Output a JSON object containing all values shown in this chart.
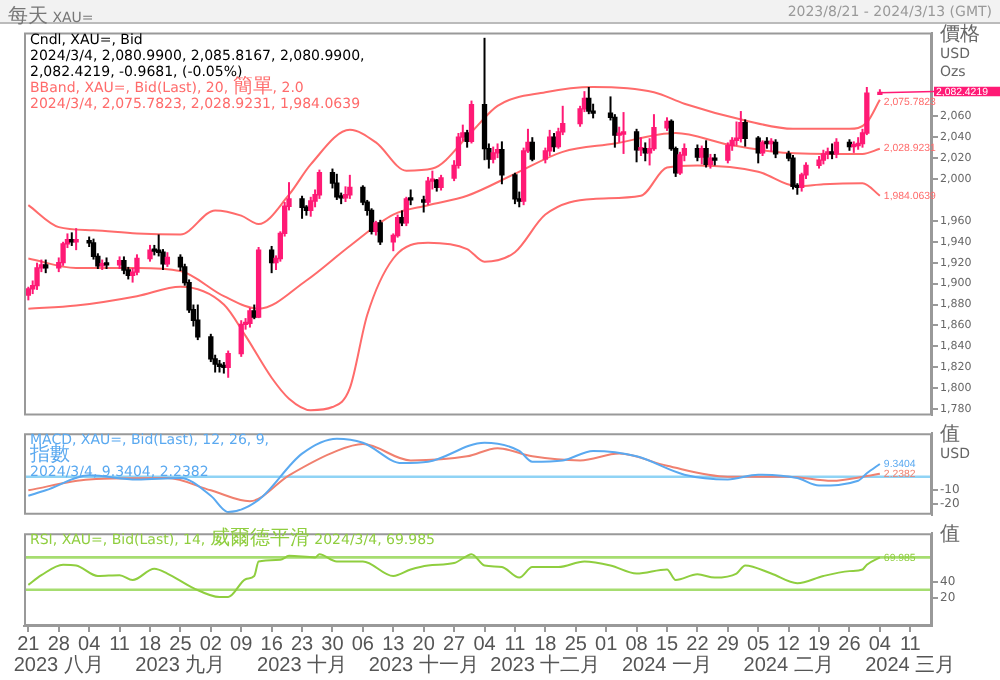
{
  "chart_data": [
    {
      "type": "other",
      "title": "每天 XAU=",
      "subtitle": "2023/8/21 - 2024/3/13 (GMT)"
    },
    {
      "type": "candlestick",
      "title": "Cndl, XAU=, Bid",
      "subtitle": "2024/3/4, 2,080.9900, 2,085.8167, 2,080.9900, 2,082.4219, -0.9681, (-0.05%)",
      "ylabel": "價格\nUSD\nOzs",
      "tick_labels": "y",
      "xlim": [
        "2023-08-20",
        "2024-03-16"
      ],
      "ylim": [
        1774,
        2140
      ],
      "yticks": [
        {
          "value": 1780,
          "label": "1,780"
        },
        {
          "value": 1800,
          "label": "1,800"
        },
        {
          "value": 1820,
          "label": "1,820"
        },
        {
          "value": 1840,
          "label": "1,840"
        },
        {
          "value": 1860,
          "label": "1,860"
        },
        {
          "value": 1880,
          "label": "1,880"
        },
        {
          "value": 1900,
          "label": "1,900"
        },
        {
          "value": 1920,
          "label": "1,920"
        },
        {
          "value": 1940,
          "label": "1,940"
        },
        {
          "value": 1960,
          "label": "1,960"
        },
        {
          "value": 2000,
          "label": "2,000"
        },
        {
          "value": 2020,
          "label": "2,020"
        },
        {
          "value": 2040,
          "label": "2,040"
        },
        {
          "value": 2060,
          "label": "2,060"
        }
      ],
      "x": [
        "2023-08-21",
        "2023-08-22",
        "2023-08-23",
        "2023-08-24",
        "2023-08-25",
        "2023-08-28",
        "2023-08-29",
        "2023-08-30",
        "2023-08-31",
        "2023-09-01",
        "2023-09-04",
        "2023-09-05",
        "2023-09-06",
        "2023-09-07",
        "2023-09-08",
        "2023-09-11",
        "2023-09-12",
        "2023-09-13",
        "2023-09-14",
        "2023-09-15",
        "2023-09-18",
        "2023-09-19",
        "2023-09-20",
        "2023-09-21",
        "2023-09-22",
        "2023-09-25",
        "2023-09-26",
        "2023-09-27",
        "2023-09-28",
        "2023-09-29",
        "2023-10-02",
        "2023-10-03",
        "2023-10-04",
        "2023-10-05",
        "2023-10-06",
        "2023-10-09",
        "2023-10-10",
        "2023-10-11",
        "2023-10-12",
        "2023-10-13",
        "2023-10-16",
        "2023-10-17",
        "2023-10-18",
        "2023-10-19",
        "2023-10-20",
        "2023-10-23",
        "2023-10-24",
        "2023-10-25",
        "2023-10-26",
        "2023-10-27",
        "2023-10-30",
        "2023-10-31",
        "2023-11-01",
        "2023-11-02",
        "2023-11-03",
        "2023-11-06",
        "2023-11-07",
        "2023-11-08",
        "2023-11-09",
        "2023-11-10",
        "2023-11-13",
        "2023-11-14",
        "2023-11-15",
        "2023-11-16",
        "2023-11-17",
        "2023-11-20",
        "2023-11-21",
        "2023-11-22",
        "2023-11-23",
        "2023-11-24",
        "2023-11-27",
        "2023-11-28",
        "2023-11-29",
        "2023-11-30",
        "2023-12-01",
        "2023-12-04",
        "2023-12-05",
        "2023-12-06",
        "2023-12-07",
        "2023-12-08",
        "2023-12-11",
        "2023-12-12",
        "2023-12-13",
        "2023-12-14",
        "2023-12-15",
        "2023-12-18",
        "2023-12-19",
        "2023-12-20",
        "2023-12-21",
        "2023-12-22",
        "2023-12-26",
        "2023-12-27",
        "2023-12-28",
        "2023-12-29",
        "2024-01-02",
        "2024-01-03",
        "2024-01-04",
        "2024-01-05",
        "2024-01-08",
        "2024-01-09",
        "2024-01-10",
        "2024-01-11",
        "2024-01-12",
        "2024-01-15",
        "2024-01-16",
        "2024-01-17",
        "2024-01-18",
        "2024-01-19",
        "2024-01-22",
        "2024-01-23",
        "2024-01-24",
        "2024-01-25",
        "2024-01-26",
        "2024-01-29",
        "2024-01-30",
        "2024-01-31",
        "2024-02-01",
        "2024-02-02",
        "2024-02-05",
        "2024-02-06",
        "2024-02-07",
        "2024-02-08",
        "2024-02-09",
        "2024-02-12",
        "2024-02-13",
        "2024-02-14",
        "2024-02-15",
        "2024-02-16",
        "2024-02-19",
        "2024-02-20",
        "2024-02-21",
        "2024-02-22",
        "2024-02-23",
        "2024-02-26",
        "2024-02-27",
        "2024-02-28",
        "2024-02-29",
        "2024-03-01",
        "2024-03-04"
      ],
      "ohlc": [
        [
          1889,
          1897,
          1884,
          1895
        ],
        [
          1895,
          1903,
          1890,
          1898
        ],
        [
          1898,
          1920,
          1894,
          1915
        ],
        [
          1915,
          1923,
          1911,
          1918
        ],
        [
          1918,
          1923,
          1910,
          1915
        ],
        [
          1915,
          1925,
          1911,
          1920
        ],
        [
          1920,
          1940,
          1917,
          1938
        ],
        [
          1938,
          1948,
          1934,
          1942
        ],
        [
          1942,
          1949,
          1936,
          1940
        ],
        [
          1940,
          1953,
          1932,
          1941
        ],
        [
          1941,
          1945,
          1935,
          1939
        ],
        [
          1939,
          1943,
          1923,
          1926
        ],
        [
          1926,
          1929,
          1914,
          1917
        ],
        [
          1917,
          1923,
          1913,
          1919
        ],
        [
          1919,
          1925,
          1914,
          1918
        ],
        [
          1918,
          1926,
          1914,
          1922
        ],
        [
          1922,
          1926,
          1909,
          1913
        ],
        [
          1913,
          1916,
          1904,
          1908
        ],
        [
          1908,
          1915,
          1901,
          1911
        ],
        [
          1911,
          1928,
          1908,
          1924
        ],
        [
          1924,
          1937,
          1921,
          1932
        ],
        [
          1932,
          1937,
          1927,
          1931
        ],
        [
          1931,
          1947,
          1926,
          1930
        ],
        [
          1930,
          1933,
          1913,
          1919
        ],
        [
          1919,
          1930,
          1916,
          1925
        ],
        [
          1925,
          1928,
          1912,
          1916
        ],
        [
          1916,
          1919,
          1898,
          1901
        ],
        [
          1901,
          1904,
          1872,
          1875
        ],
        [
          1875,
          1880,
          1859,
          1865
        ],
        [
          1865,
          1880,
          1846,
          1849
        ],
        [
          1849,
          1852,
          1825,
          1828
        ],
        [
          1828,
          1832,
          1815,
          1823
        ],
        [
          1823,
          1827,
          1815,
          1821
        ],
        [
          1821,
          1825,
          1814,
          1820
        ],
        [
          1820,
          1836,
          1810,
          1833
        ],
        [
          1833,
          1865,
          1830,
          1861
        ],
        [
          1861,
          1867,
          1856,
          1862
        ],
        [
          1862,
          1877,
          1858,
          1874
        ],
        [
          1874,
          1880,
          1866,
          1868
        ],
        [
          1868,
          1935,
          1867,
          1932
        ],
        [
          1932,
          1936,
          1910,
          1920
        ],
        [
          1920,
          1927,
          1913,
          1924
        ],
        [
          1924,
          1950,
          1921,
          1948
        ],
        [
          1948,
          1978,
          1945,
          1974
        ],
        [
          1974,
          1997,
          1970,
          1981
        ],
        [
          1981,
          1984,
          1962,
          1973
        ],
        [
          1973,
          1975,
          1965,
          1970
        ],
        [
          1970,
          1983,
          1964,
          1979
        ],
        [
          1979,
          1990,
          1973,
          1985
        ],
        [
          1985,
          2009,
          1981,
          2006
        ],
        [
          2006,
          2010,
          1991,
          1996
        ],
        [
          1996,
          2005,
          1980,
          1983
        ],
        [
          1983,
          1987,
          1976,
          1982
        ],
        [
          1982,
          1993,
          1978,
          1985
        ],
        [
          1985,
          2004,
          1981,
          1992
        ],
        [
          1992,
          1994,
          1975,
          1978
        ],
        [
          1978,
          1980,
          1965,
          1970
        ],
        [
          1970,
          1972,
          1947,
          1950
        ],
        [
          1950,
          1960,
          1946,
          1958
        ],
        [
          1958,
          1961,
          1937,
          1940
        ],
        [
          1940,
          1948,
          1931,
          1946
        ],
        [
          1946,
          1966,
          1944,
          1963
        ],
        [
          1963,
          1970,
          1955,
          1958
        ],
        [
          1958,
          1983,
          1955,
          1981
        ],
        [
          1981,
          1990,
          1975,
          1980
        ],
        [
          1980,
          1984,
          1968,
          1978
        ],
        [
          1978,
          2002,
          1975,
          1998
        ],
        [
          1998,
          2008,
          1990,
          1999
        ],
        [
          1999,
          2000,
          1988,
          1992
        ],
        [
          1992,
          2004,
          1989,
          2001
        ],
        [
          2001,
          2018,
          1998,
          2013
        ],
        [
          2013,
          2044,
          2010,
          2040
        ],
        [
          2040,
          2052,
          2036,
          2044
        ],
        [
          2044,
          2047,
          2030,
          2036
        ],
        [
          2036,
          2075,
          2034,
          2071
        ],
        [
          2071,
          2135,
          2018,
          2029
        ],
        [
          2029,
          2034,
          2010,
          2019
        ],
        [
          2019,
          2031,
          2015,
          2025
        ],
        [
          2025,
          2034,
          2020,
          2028
        ],
        [
          2028,
          2036,
          1995,
          2004
        ],
        [
          2004,
          2006,
          1976,
          1981
        ],
        [
          1981,
          1988,
          1973,
          1979
        ],
        [
          1979,
          2030,
          1975,
          2027
        ],
        [
          2027,
          2048,
          2025,
          2035
        ],
        [
          2035,
          2040,
          2017,
          2019
        ],
        [
          2019,
          2030,
          2015,
          2027
        ],
        [
          2027,
          2047,
          2022,
          2040
        ],
        [
          2040,
          2044,
          2026,
          2031
        ],
        [
          2031,
          2049,
          2029,
          2045
        ],
        [
          2045,
          2070,
          2042,
          2053
        ],
        [
          2053,
          2070,
          2050,
          2067
        ],
        [
          2067,
          2084,
          2064,
          2077
        ],
        [
          2077,
          2088,
          2062,
          2065
        ],
        [
          2065,
          2072,
          2058,
          2063
        ],
        [
          2063,
          2079,
          2056,
          2059
        ],
        [
          2059,
          2062,
          2030,
          2042
        ],
        [
          2042,
          2050,
          2035,
          2043
        ],
        [
          2043,
          2064,
          2024,
          2045
        ],
        [
          2045,
          2048,
          2016,
          2028
        ],
        [
          2028,
          2040,
          2022,
          2029
        ],
        [
          2029,
          2035,
          2017,
          2025
        ],
        [
          2025,
          2039,
          2013,
          2029
        ],
        [
          2029,
          2062,
          2027,
          2049
        ],
        [
          2049,
          2059,
          2046,
          2055
        ],
        [
          2055,
          2057,
          2027,
          2029
        ],
        [
          2029,
          2031,
          2002,
          2006
        ],
        [
          2006,
          2026,
          2004,
          2023
        ],
        [
          2023,
          2034,
          2017,
          2029
        ],
        [
          2029,
          2033,
          2017,
          2021
        ],
        [
          2021,
          2032,
          2014,
          2029
        ],
        [
          2029,
          2037,
          2011,
          2014
        ],
        [
          2014,
          2024,
          2010,
          2020
        ],
        [
          2020,
          2024,
          2013,
          2018
        ],
        [
          2018,
          2035,
          2015,
          2032
        ],
        [
          2032,
          2040,
          2027,
          2037
        ],
        [
          2037,
          2055,
          2032,
          2039
        ],
        [
          2039,
          2065,
          2035,
          2054
        ],
        [
          2054,
          2057,
          2031,
          2039
        ],
        [
          2039,
          2041,
          2015,
          2025
        ],
        [
          2025,
          2037,
          2022,
          2035
        ],
        [
          2035,
          2040,
          2029,
          2034
        ],
        [
          2034,
          2039,
          2026,
          2035
        ],
        [
          2035,
          2038,
          2020,
          2024
        ],
        [
          2024,
          2027,
          2017,
          2020
        ],
        [
          2020,
          2023,
          1990,
          1993
        ],
        [
          1993,
          1996,
          1985,
          1992
        ],
        [
          1992,
          2006,
          1988,
          2004
        ],
        [
          2004,
          2016,
          2000,
          2013
        ],
        [
          2013,
          2022,
          2010,
          2018
        ],
        [
          2018,
          2028,
          2014,
          2024
        ],
        [
          2024,
          2030,
          2019,
          2025
        ],
        [
          2025,
          2034,
          2019,
          2024
        ],
        [
          2024,
          2039,
          2020,
          2035
        ],
        [
          2035,
          2038,
          2027,
          2031
        ],
        [
          2031,
          2036,
          2025,
          2032
        ],
        [
          2032,
          2040,
          2028,
          2034
        ],
        [
          2034,
          2048,
          2030,
          2044
        ],
        [
          2044,
          2088,
          2042,
          2082
        ],
        [
          2080.99,
          2085.8167,
          2080.99,
          2082.4219
        ]
      ],
      "colors": [
        "#ff1a75",
        "#ff1a75",
        "#ff1a75",
        "#ff1a75",
        "#000000",
        "#ff1a75",
        "#ff1a75",
        "#ff1a75",
        "#000000",
        "#ff1a75",
        "#000000",
        "#000000",
        "#000000",
        "#ff1a75",
        "#000000",
        "#ff1a75",
        "#000000",
        "#000000",
        "#ff1a75",
        "#ff1a75",
        "#ff1a75",
        "#000000",
        "#000000",
        "#000000",
        "#ff1a75",
        "#000000",
        "#000000",
        "#000000",
        "#000000",
        "#000000",
        "#000000",
        "#000000",
        "#000000",
        "#000000",
        "#ff1a75",
        "#ff1a75",
        "#ff1a75",
        "#ff1a75",
        "#000000",
        "#ff1a75",
        "#000000",
        "#ff1a75",
        "#ff1a75",
        "#ff1a75",
        "#ff1a75",
        "#000000",
        "#000000",
        "#ff1a75",
        "#ff1a75",
        "#ff1a75",
        "#000000",
        "#000000",
        "#000000",
        "#ff1a75",
        "#ff1a75",
        "#000000",
        "#000000",
        "#000000",
        "#ff1a75",
        "#000000",
        "#ff1a75",
        "#ff1a75",
        "#000000",
        "#ff1a75",
        "#000000",
        "#000000",
        "#ff1a75",
        "#ff1a75",
        "#000000",
        "#ff1a75",
        "#ff1a75",
        "#ff1a75",
        "#ff1a75",
        "#000000",
        "#ff1a75",
        "#000000",
        "#000000",
        "#ff1a75",
        "#ff1a75",
        "#000000",
        "#000000",
        "#000000",
        "#ff1a75",
        "#ff1a75",
        "#000000",
        "#ff1a75",
        "#ff1a75",
        "#000000",
        "#ff1a75",
        "#ff1a75",
        "#ff1a75",
        "#ff1a75",
        "#000000",
        "#000000",
        "#000000",
        "#000000",
        "#ff1a75",
        "#ff1a75",
        "#000000",
        "#ff1a75",
        "#000000",
        "#ff1a75",
        "#ff1a75",
        "#ff1a75",
        "#000000",
        "#000000",
        "#ff1a75",
        "#ff1a75",
        "#000000",
        "#ff1a75",
        "#000000",
        "#ff1a75",
        "#000000",
        "#ff1a75",
        "#ff1a75",
        "#ff1a75",
        "#ff1a75",
        "#000000",
        "#000000",
        "#ff1a75",
        "#000000",
        "#ff1a75",
        "#000000",
        "#000000",
        "#000000",
        "#000000",
        "#ff1a75",
        "#ff1a75",
        "#ff1a75",
        "#ff1a75",
        "#ff1a75",
        "#000000",
        "#ff1a75",
        "#000000",
        "#ff1a75",
        "#ff1a75",
        "#ff1a75",
        "#ff1a75",
        "#ff1a75"
      ],
      "series": [
        {
          "type": "line",
          "color": "#ff6b6b",
          "x": [
            "2023-08-21",
            "2023-08-28",
            "2023-09-05",
            "2023-09-15",
            "2023-09-25",
            "2023-10-03",
            "2023-10-09",
            "2023-10-13",
            "2023-10-20",
            "2023-10-25",
            "2023-11-03",
            "2023-11-09",
            "2023-11-16",
            "2023-11-22",
            "2023-12-01",
            "2023-12-07",
            "2023-12-18",
            "2023-12-29",
            "2024-01-12",
            "2024-01-19",
            "2024-02-02",
            "2024-02-13",
            "2024-02-26",
            "2024-03-01",
            "2024-03-04"
          ],
          "values": [
            1975,
            1954,
            1951,
            1948,
            1947,
            1970,
            1965,
            1957,
            1985,
            2014,
            2047,
            2035,
            2008,
            2010,
            2045,
            2070,
            2083,
            2088,
            2083,
            2072,
            2056,
            2048,
            2048,
            2054,
            2075.7823
          ],
          "value_labels": [
            null,
            null,
            null,
            null,
            null,
            null,
            null,
            null,
            null,
            null,
            null,
            null,
            null,
            null,
            null,
            null,
            null,
            null,
            null,
            null,
            null,
            null,
            null,
            null,
            "2,075.7823"
          ]
        },
        {
          "type": "line",
          "color": "#ff6b6b",
          "x": [
            "2023-08-21",
            "2023-09-01",
            "2023-09-15",
            "2023-09-25",
            "2023-10-05",
            "2023-10-13",
            "2023-10-24",
            "2023-11-03",
            "2023-11-13",
            "2023-11-21",
            "2023-11-30",
            "2023-12-11",
            "2023-12-22",
            "2024-01-03",
            "2024-01-17",
            "2024-01-29",
            "2024-02-12",
            "2024-02-29",
            "2024-03-04"
          ],
          "values": [
            1924,
            1915,
            1915,
            1912,
            1888,
            1876,
            1903,
            1936,
            1966,
            1975,
            1984,
            2005,
            2026,
            2034,
            2044,
            2033,
            2025,
            2024,
            2028.9231
          ],
          "value_labels": [
            null,
            null,
            null,
            null,
            null,
            null,
            null,
            null,
            null,
            null,
            null,
            null,
            null,
            null,
            null,
            null,
            null,
            null,
            "2,028.9231"
          ]
        },
        {
          "type": "line",
          "color": "#ff6b6b",
          "x": [
            "2023-08-21",
            "2023-09-01",
            "2023-09-15",
            "2023-09-25",
            "2023-10-05",
            "2023-10-10",
            "2023-10-16",
            "2023-10-20",
            "2023-10-25",
            "2023-10-30",
            "2023-11-03",
            "2023-11-07",
            "2023-11-13",
            "2023-11-21",
            "2023-11-30",
            "2023-12-04",
            "2023-12-11",
            "2023-12-18",
            "2023-12-29",
            "2024-01-09",
            "2024-01-15",
            "2024-01-22",
            "2024-02-05",
            "2024-02-14",
            "2024-02-20",
            "2024-02-29",
            "2024-03-04"
          ],
          "values": [
            1876,
            1879,
            1888,
            1897,
            1880,
            1850,
            1810,
            1790,
            1779,
            1782,
            1800,
            1870,
            1924,
            1939,
            1933,
            1921,
            1930,
            1966,
            1981,
            1984,
            2011,
            2013,
            2007,
            1993,
            1995,
            1996,
            1984.0639
          ],
          "value_labels": [
            null,
            null,
            null,
            null,
            null,
            null,
            null,
            null,
            null,
            null,
            null,
            null,
            null,
            null,
            null,
            null,
            null,
            null,
            null,
            null,
            null,
            null,
            null,
            null,
            null,
            null,
            "1,984.0639"
          ]
        }
      ],
      "annotations": [
        "BBand, XAU=, Bid(Last), 20, 簡單, 2.0",
        "2024/3/4, 2,075.7823, 2,028.9231, 1,984.0639",
        {
          "text": "2,082.4219",
          "x": "2024-03-04",
          "y": 2082.4219
        }
      ]
    },
    {
      "type": "line",
      "title": "MACD, XAU=, Bid(Last), 12, 26, 9, 指數",
      "subtitle": "2024/3/4, 9.3404, 2.2382",
      "ylabel": "值\nUSD",
      "tick_labels": "y",
      "xlim": [
        "2023-08-20",
        "2024-03-16"
      ],
      "ylim": [
        -28,
        32
      ],
      "yticks": [
        -20,
        -10
      ],
      "ref_lines": [
        {
          "axis": "y",
          "value": 0,
          "color": "#8fd3f5"
        }
      ],
      "series": [
        {
          "color": "#5aa9f0",
          "x": [
            "2023-08-21",
            "2023-08-25",
            "2023-09-04",
            "2023-09-15",
            "2023-09-25",
            "2023-10-02",
            "2023-10-06",
            "2023-10-13",
            "2023-10-23",
            "2023-10-31",
            "2023-11-06",
            "2023-11-15",
            "2023-11-21",
            "2023-12-04",
            "2023-12-12",
            "2023-12-15",
            "2023-12-22",
            "2023-12-29",
            "2024-01-08",
            "2024-01-19",
            "2024-01-29",
            "2024-02-05",
            "2024-02-14",
            "2024-02-19",
            "2024-02-28",
            "2024-03-01",
            "2024-03-04"
          ],
          "values": [
            -14,
            -10,
            1,
            -2,
            -1,
            -14,
            -26,
            -17,
            17,
            28,
            25,
            10,
            11,
            25,
            19,
            11,
            12,
            19,
            15,
            1.5,
            -2,
            1.5,
            -1,
            -6.5,
            -3,
            2.5,
            9.3404
          ],
          "value_labels": [
            null,
            null,
            null,
            null,
            null,
            null,
            null,
            null,
            null,
            null,
            null,
            null,
            null,
            null,
            null,
            null,
            null,
            null,
            null,
            null,
            null,
            null,
            null,
            null,
            null,
            null,
            "9.3404"
          ]
        },
        {
          "color": "#f0806f",
          "x": [
            "2023-08-21",
            "2023-09-04",
            "2023-09-22",
            "2023-10-02",
            "2023-10-11",
            "2023-10-20",
            "2023-10-31",
            "2023-11-06",
            "2023-11-17",
            "2023-11-30",
            "2023-12-07",
            "2023-12-15",
            "2023-12-26",
            "2024-01-04",
            "2024-01-15",
            "2024-01-29",
            "2024-02-12",
            "2024-02-22",
            "2024-03-01",
            "2024-03-04"
          ],
          "values": [
            -10,
            -2,
            -1,
            -10,
            -18,
            1,
            19,
            24,
            12,
            15,
            21,
            15,
            12,
            17,
            8,
            0,
            0,
            -3,
            0.5,
            2.2382
          ],
          "value_labels": [
            null,
            null,
            null,
            null,
            null,
            null,
            null,
            null,
            null,
            null,
            null,
            null,
            null,
            null,
            null,
            null,
            null,
            null,
            null,
            "2.2382"
          ]
        }
      ]
    },
    {
      "type": "line",
      "title": "RSI, XAU=, Bid(Last), 14, 威爾德平滑",
      "subtitle": "2024/3/4, 69.985",
      "ylabel": "值",
      "xlim": [
        "2023-08-20",
        "2024-03-16"
      ],
      "ylim": [
        -15,
        100
      ],
      "yticks": [
        20,
        40
      ],
      "xticks": [
        {
          "value": "2023-08-21",
          "label": "21"
        },
        {
          "value": "2023-08-28",
          "label": "28\n2023 八月"
        },
        {
          "value": "2023-09-04",
          "label": "04"
        },
        {
          "value": "2023-09-11",
          "label": "11"
        },
        {
          "value": "2023-09-18",
          "label": "18"
        },
        {
          "value": "2023-09-25",
          "label": "25\n2023 九月"
        },
        {
          "value": "2023-10-02",
          "label": "02"
        },
        {
          "value": "2023-10-09",
          "label": "09"
        },
        {
          "value": "2023-10-16",
          "label": "16"
        },
        {
          "value": "2023-10-23",
          "label": "23\n2023 十月"
        },
        {
          "value": "2023-10-30",
          "label": "30"
        },
        {
          "value": "2023-11-06",
          "label": "06"
        },
        {
          "value": "2023-11-13",
          "label": "13"
        },
        {
          "value": "2023-11-20",
          "label": "20\n2023 十一月"
        },
        {
          "value": "2023-11-27",
          "label": "27"
        },
        {
          "value": "2023-12-04",
          "label": "04"
        },
        {
          "value": "2023-12-11",
          "label": "11"
        },
        {
          "value": "2023-12-18",
          "label": "18\n2023 十二月"
        },
        {
          "value": "2023-12-25",
          "label": "25"
        },
        {
          "value": "2024-01-01",
          "label": "01"
        },
        {
          "value": "2024-01-08",
          "label": "08"
        },
        {
          "value": "2024-01-15",
          "label": "15\n2024 一月"
        },
        {
          "value": "2024-01-22",
          "label": "22"
        },
        {
          "value": "2024-01-29",
          "label": "29"
        },
        {
          "value": "2024-02-05",
          "label": "05"
        },
        {
          "value": "2024-02-12",
          "label": "12\n2024 二月"
        },
        {
          "value": "2024-02-19",
          "label": "19"
        },
        {
          "value": "2024-02-26",
          "label": "26"
        },
        {
          "value": "2024-03-04",
          "label": "04"
        },
        {
          "value": "2024-03-11",
          "label": "11\n2024 三月"
        }
      ],
      "ref_lines": [
        {
          "axis": "y",
          "value": 70,
          "color": "#a6dd70"
        },
        {
          "axis": "y",
          "value": 30,
          "color": "#a6dd70"
        }
      ],
      "series": [
        {
          "color": "#8fce3f",
          "x": [
            "2023-08-21",
            "2023-08-24",
            "2023-08-29",
            "2023-09-01",
            "2023-09-06",
            "2023-09-11",
            "2023-09-14",
            "2023-09-19",
            "2023-09-22",
            "2023-09-28",
            "2023-10-04",
            "2023-10-06",
            "2023-10-10",
            "2023-10-12",
            "2023-10-13",
            "2023-10-18",
            "2023-10-20",
            "2023-10-26",
            "2023-10-27",
            "2023-10-31",
            "2023-11-06",
            "2023-11-13",
            "2023-11-17",
            "2023-11-21",
            "2023-11-27",
            "2023-11-30",
            "2023-12-01",
            "2023-12-04",
            "2023-12-08",
            "2023-12-12",
            "2023-12-15",
            "2023-12-21",
            "2023-12-27",
            "2024-01-02",
            "2024-01-08",
            "2024-01-15",
            "2024-01-17",
            "2024-01-22",
            "2024-01-26",
            "2024-01-31",
            "2024-02-02",
            "2024-02-08",
            "2024-02-14",
            "2024-02-20",
            "2024-02-26",
            "2024-02-29",
            "2024-03-01",
            "2024-03-04"
          ],
          "values": [
            36,
            48,
            61,
            60,
            47,
            48,
            42,
            56,
            50,
            32,
            21,
            21,
            43,
            47,
            65,
            67,
            72,
            70,
            74,
            65,
            65,
            47,
            55,
            60,
            63,
            72,
            74,
            60,
            58,
            45,
            58,
            58,
            65,
            60,
            50,
            55,
            42,
            49,
            45,
            50,
            60,
            50,
            38,
            47,
            53,
            55,
            61,
            69.985
          ],
          "value_labels": [
            null,
            null,
            null,
            null,
            null,
            null,
            null,
            null,
            null,
            null,
            null,
            null,
            null,
            null,
            null,
            null,
            null,
            null,
            null,
            null,
            null,
            null,
            null,
            null,
            null,
            null,
            null,
            null,
            null,
            null,
            null,
            null,
            null,
            null,
            null,
            null,
            null,
            null,
            null,
            null,
            null,
            null,
            null,
            null,
            null,
            null,
            null,
            "69.985"
          ]
        }
      ]
    }
  ]
}
